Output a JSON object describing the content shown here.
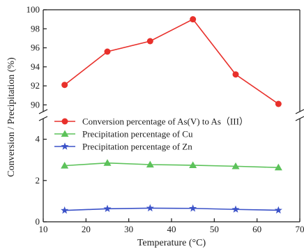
{
  "chart_data": {
    "type": "line",
    "xlabel": "Temperature (°C)",
    "ylabel": "Conversion / Precipitation (%)",
    "xlim": [
      10,
      70
    ],
    "xticks": [
      10,
      20,
      30,
      40,
      50,
      60,
      70
    ],
    "y_axis_break": true,
    "upper_panel": {
      "ylim": [
        89,
        100
      ],
      "yticks": [
        90,
        92,
        94,
        96,
        98,
        100
      ]
    },
    "lower_panel": {
      "ylim": [
        0,
        5
      ],
      "yticks": [
        0,
        2,
        4
      ]
    },
    "x": [
      15,
      25,
      35,
      45,
      55,
      65
    ],
    "series": [
      {
        "name": "Conversion percentage  of As(V) to As（III）",
        "panel": "upper",
        "marker": "circle",
        "color": "#e8302b",
        "values": [
          92.1,
          95.6,
          96.7,
          99.0,
          93.2,
          90.1
        ]
      },
      {
        "name": "Precipitation percentage of Cu",
        "panel": "lower",
        "marker": "triangle",
        "color": "#5cc25a",
        "values": [
          2.72,
          2.85,
          2.77,
          2.74,
          2.69,
          2.63
        ]
      },
      {
        "name": "Precipitation percentage of Zn",
        "panel": "lower",
        "marker": "star",
        "color": "#3b52c8",
        "values": [
          0.55,
          0.63,
          0.66,
          0.65,
          0.6,
          0.56
        ]
      }
    ],
    "legend_position": "center-left",
    "grid": false
  }
}
